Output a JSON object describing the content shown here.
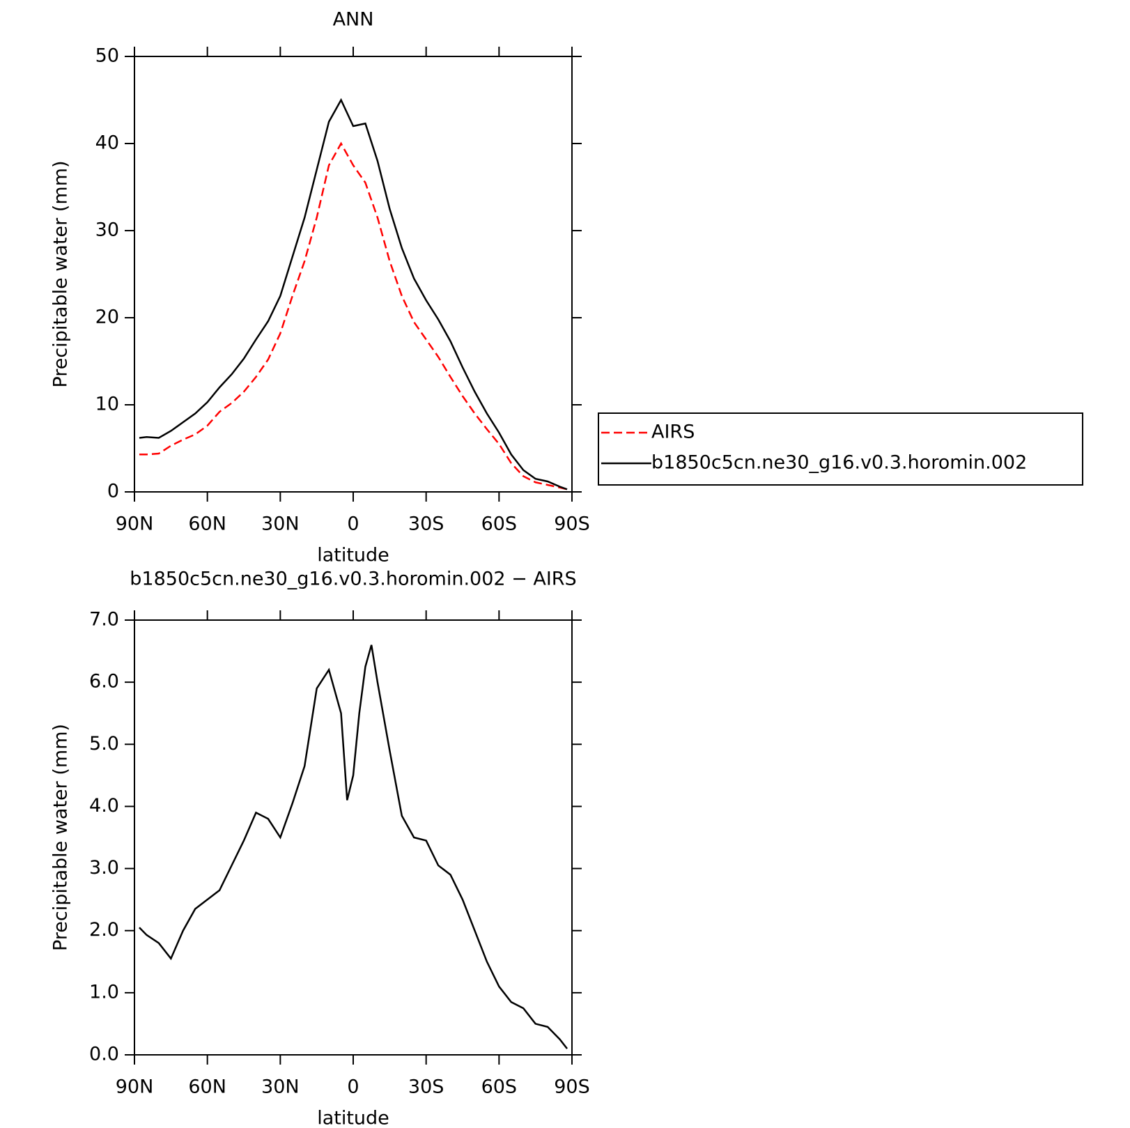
{
  "chart_data": [
    {
      "type": "line",
      "title": "ANN",
      "x_label": "latitude",
      "y_label": "Precipitable water (mm)",
      "x": [
        88,
        85,
        80,
        75,
        70,
        65,
        60,
        55,
        50,
        45,
        40,
        35,
        30,
        25,
        20,
        15,
        10,
        5,
        0,
        -5,
        -10,
        -15,
        -20,
        -25,
        -30,
        -35,
        -40,
        -45,
        -50,
        -55,
        -60,
        -65,
        -70,
        -75,
        -80,
        -85,
        -88
      ],
      "xlim": [
        90,
        -90
      ],
      "xticks": [
        {
          "value": 90,
          "label": "90N"
        },
        {
          "value": 60,
          "label": "60N"
        },
        {
          "value": 30,
          "label": "30N"
        },
        0,
        {
          "value": -30,
          "label": "30S"
        },
        {
          "value": -60,
          "label": "60S"
        },
        {
          "value": -90,
          "label": "90S"
        }
      ],
      "ylim": [
        0,
        50
      ],
      "yticks": [
        0,
        10,
        20,
        30,
        40,
        50
      ],
      "legend": "right",
      "series": [
        {
          "name": "AIRS",
          "color": "#ff0000",
          "line_style": "dashed",
          "values": [
            4.3,
            4.3,
            4.4,
            5.3,
            6.0,
            6.6,
            7.6,
            9.2,
            10.2,
            11.5,
            13.2,
            15.2,
            18.2,
            22.5,
            26.5,
            31.5,
            37.5,
            40,
            37.5,
            35.5,
            31.5,
            26.5,
            22.5,
            19.5,
            17.5,
            15.5,
            13.2,
            11.0,
            9.0,
            7.2,
            5.5,
            3.3,
            1.8,
            1.1,
            0.8,
            0.5,
            0.3
          ]
        },
        {
          "name": "b1850c5cn.ne30_g16.v0.3.horomin.002",
          "color": "#000000",
          "line_style": "solid",
          "values": [
            6.2,
            6.3,
            6.2,
            7.0,
            8.0,
            9.0,
            10.3,
            12.0,
            13.5,
            15.3,
            17.5,
            19.6,
            22.5,
            27,
            31.5,
            37,
            42.5,
            45.0,
            42,
            42.3,
            38,
            32.5,
            28,
            24.5,
            22,
            19.8,
            17.3,
            14.3,
            11.5,
            9,
            6.8,
            4.3,
            2.5,
            1.5,
            1.2,
            0.6,
            0.3
          ]
        }
      ]
    },
    {
      "type": "line",
      "title": "b1850c5cn.ne30_g16.v0.3.horomin.002 − AIRS",
      "x_label": "latitude",
      "y_label": "Precipitable water (mm)",
      "x": [
        88,
        85,
        80,
        75,
        70,
        65,
        60,
        55,
        50,
        45,
        40,
        35,
        30,
        25,
        20,
        15,
        10,
        5,
        2.5,
        0,
        -2.5,
        -5,
        -7.5,
        -10,
        -15,
        -20,
        -25,
        -30,
        -35,
        -40,
        -45,
        -50,
        -55,
        -60,
        -65,
        -70,
        -75,
        -80,
        -85,
        -88
      ],
      "xlim": [
        90,
        -90
      ],
      "xticks": [
        {
          "value": 90,
          "label": "90N"
        },
        {
          "value": 60,
          "label": "60N"
        },
        {
          "value": 30,
          "label": "30N"
        },
        0,
        {
          "value": -30,
          "label": "30S"
        },
        {
          "value": -60,
          "label": "60S"
        },
        {
          "value": -90,
          "label": "90S"
        }
      ],
      "ylim": [
        0,
        7
      ],
      "yticks": [
        {
          "value": 0,
          "label": "0.0"
        },
        {
          "value": 1,
          "label": "1.0"
        },
        {
          "value": 2,
          "label": "2.0"
        },
        {
          "value": 3,
          "label": "3.0"
        },
        {
          "value": 4,
          "label": "4.0"
        },
        {
          "value": 5,
          "label": "5.0"
        },
        {
          "value": 6,
          "label": "6.0"
        },
        {
          "value": 7,
          "label": "7.0"
        }
      ],
      "series": [
        {
          "color": "#000000",
          "line_style": "solid",
          "values": [
            2.05,
            1.93,
            1.8,
            1.55,
            2.0,
            2.35,
            2.5,
            2.65,
            3.05,
            3.45,
            3.9,
            3.8,
            3.5,
            4.05,
            4.65,
            5.9,
            6.2,
            5.5,
            4.1,
            4.5,
            5.5,
            6.25,
            6.6,
            6.0,
            4.9,
            3.85,
            3.5,
            3.45,
            3.05,
            2.9,
            2.5,
            2.0,
            1.5,
            1.1,
            0.85,
            0.75,
            0.5,
            0.45,
            0.25,
            0.1
          ]
        }
      ]
    }
  ]
}
